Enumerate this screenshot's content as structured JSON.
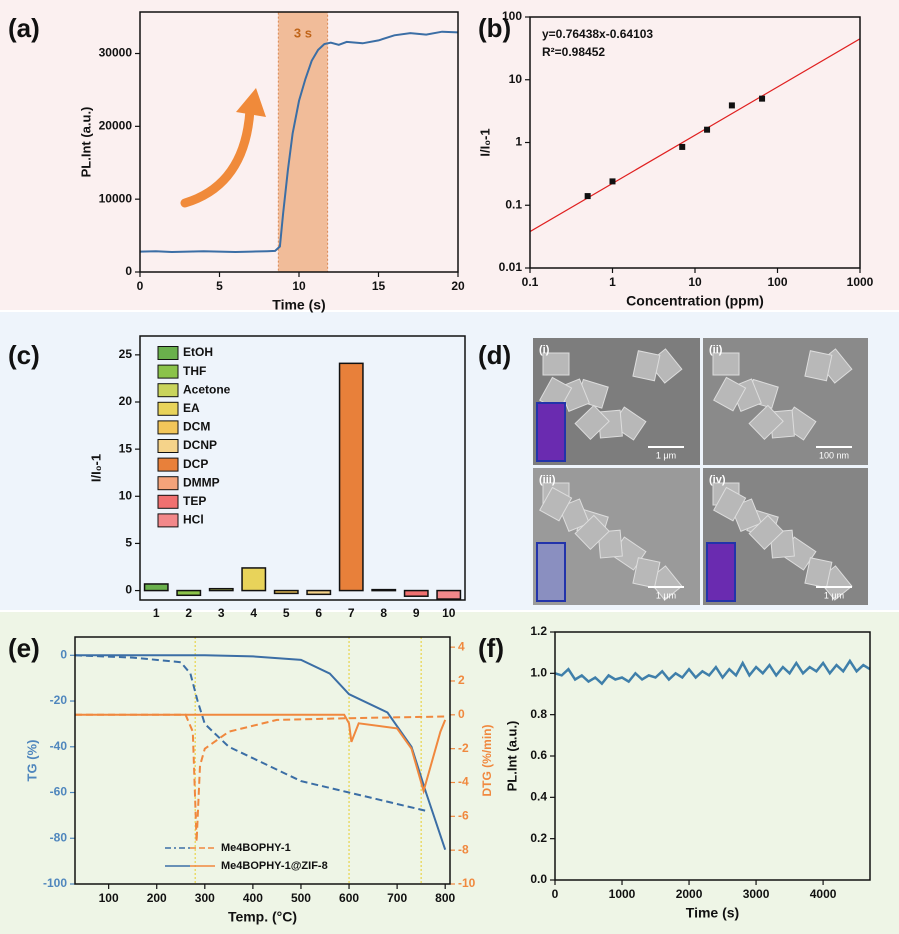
{
  "chart_data": [
    {
      "type": "line",
      "label": "(a)",
      "xlabel": "Time (s)",
      "ylabel": "PL.Int (a.u.)",
      "xlim": [
        0,
        20
      ],
      "xticks": [
        0,
        5,
        10,
        15,
        20
      ],
      "ylim": [
        0,
        35700
      ],
      "yticks": [
        0,
        10000,
        20000,
        30000
      ],
      "x": [
        0,
        1,
        2,
        3,
        4,
        5,
        6,
        7,
        8,
        8.5,
        8.8,
        9,
        9.3,
        9.6,
        10,
        10.4,
        10.8,
        11.2,
        11.6,
        12,
        12.5,
        13,
        14,
        15,
        16,
        17,
        18,
        19,
        20
      ],
      "series": [
        {
          "color": "#3b6ea5",
          "values": [
            2800,
            2850,
            2750,
            2800,
            2850,
            2800,
            2750,
            2800,
            2850,
            2900,
            3500,
            8000,
            14000,
            19000,
            23500,
            26500,
            29000,
            30500,
            31300,
            31500,
            31200,
            31600,
            31400,
            31800,
            32500,
            32800,
            32600,
            33000,
            32900
          ]
        }
      ],
      "highlight": {
        "range": [
          8.7,
          11.8
        ],
        "label": "3 s",
        "color": "#f0b48a"
      }
    },
    {
      "type": "scatter",
      "log": true,
      "label": "(b)",
      "xlabel": "Concentration (ppm)",
      "ylabel": "I/I₀-1",
      "xlim": [
        0.1,
        1000
      ],
      "xticks": [
        0.1,
        1,
        10,
        100,
        1000
      ],
      "ylim": [
        0.01,
        100
      ],
      "yticks": [
        0.01,
        0.1,
        1,
        10,
        100
      ],
      "x": [
        0.5,
        1,
        7,
        14,
        28,
        65
      ],
      "values": [
        0.14,
        0.24,
        0.85,
        1.6,
        3.9,
        5
      ],
      "color": "#111111",
      "fit": {
        "x": [
          0.1,
          1000
        ],
        "values": [
          0.038,
          45
        ],
        "color": "#e02020",
        "equation": "y=0.76438x-0.64103",
        "r2": "R²=0.98452"
      }
    },
    {
      "type": "bar",
      "label": "(c)",
      "ylabel": "I/I₀-1",
      "categories": [
        "1",
        "2",
        "3",
        "4",
        "5",
        "6",
        "7",
        "8",
        "9",
        "10"
      ],
      "values": [
        0.7,
        -0.5,
        0.2,
        2.4,
        -0.3,
        -0.4,
        24.1,
        0.1,
        -0.6,
        -0.9
      ],
      "colors": [
        "#6ab04c",
        "#8bc34a",
        "#c9d45c",
        "#e8d35a",
        "#f2c65a",
        "#f5d38a",
        "#e8803a",
        "#f4a37a",
        "#f07070",
        "#f2888a"
      ],
      "legend": [
        "EtOH",
        "THF",
        "Acetone",
        "EA",
        "DCM",
        "DCNP",
        "DCP",
        "DMMP",
        "TEP",
        "HCl"
      ],
      "ylim": [
        -1,
        27
      ],
      "yticks": [
        0,
        5,
        10,
        15,
        20,
        25
      ]
    },
    {
      "type": "image",
      "label": "(d)",
      "panels": [
        {
          "label": "(i)",
          "scale": "1 μm"
        },
        {
          "label": "(ii)",
          "scale": "100 nm"
        },
        {
          "label": "(iii)",
          "scale": "1 μm"
        },
        {
          "label": "(iv)",
          "scale": "1 μm"
        }
      ]
    },
    {
      "type": "line",
      "label": "(e)",
      "xlabel": "Temp. (°C)",
      "ylabel": "TG (%)",
      "y2label": "DTG (%/min)",
      "ycolor": "#4f86bd",
      "y2color": "#f0883e",
      "xlim": [
        30,
        810
      ],
      "xticks": [
        100,
        200,
        300,
        400,
        500,
        600,
        700,
        800
      ],
      "ylim": [
        -100,
        8
      ],
      "yticks": [
        -100,
        -80,
        -60,
        -40,
        -20,
        0
      ],
      "y2lim": [
        -10,
        4.6
      ],
      "y2ticks": [
        -10,
        -8,
        -6,
        -4,
        -2,
        0,
        2,
        4
      ],
      "vlines": [
        280,
        600,
        750
      ],
      "vline_color": "#e8d44a",
      "series": [
        {
          "color": "#3b6ea5",
          "dash": true,
          "x": [
            30,
            150,
            250,
            270,
            285,
            300,
            350,
            400,
            500,
            600,
            700,
            760
          ],
          "values": [
            0,
            -1,
            -3,
            -8,
            -20,
            -30,
            -40,
            -45,
            -55,
            -60,
            -65,
            -68
          ]
        },
        {
          "color": "#3b6ea5",
          "dash": false,
          "x": [
            30,
            300,
            400,
            500,
            560,
            600,
            680,
            730,
            760,
            800
          ],
          "values": [
            0,
            0,
            -0.5,
            -2,
            -8,
            -17,
            -25,
            -40,
            -60,
            -85
          ]
        },
        {
          "color": "#f0883e",
          "dash": true,
          "axis": "y2",
          "x": [
            30,
            260,
            275,
            283,
            290,
            300,
            350,
            450,
            600,
            800
          ],
          "values": [
            0,
            0,
            -1,
            -7.5,
            -3,
            -2,
            -1,
            -0.3,
            -0.2,
            -0.1
          ]
        },
        {
          "color": "#f0883e",
          "dash": false,
          "axis": "y2",
          "x": [
            30,
            590,
            600,
            605,
            620,
            700,
            730,
            755,
            770,
            790,
            800
          ],
          "values": [
            0,
            0,
            -0.5,
            -1.6,
            -0.5,
            -0.8,
            -2,
            -4.5,
            -3,
            -1,
            -0.3
          ]
        }
      ],
      "legend": [
        {
          "name": "Me4BOPHY-1",
          "dash": true
        },
        {
          "name": "Me4BOPHY-1@ZIF-8",
          "dash": false
        }
      ]
    },
    {
      "type": "line",
      "label": "(f)",
      "xlabel": "Time (s)",
      "ylabel": "PL.Int (a.u.)",
      "xlim": [
        0,
        4700
      ],
      "xticks": [
        0,
        1000,
        2000,
        3000,
        4000
      ],
      "ylim": [
        0,
        1.2
      ],
      "yticks": [
        {
          "value": 0,
          "label": "0.0"
        },
        0.2,
        0.4,
        0.6,
        0.8,
        {
          "value": 1,
          "label": "1.0"
        },
        1.2
      ],
      "x": [
        0,
        100,
        200,
        300,
        400,
        500,
        600,
        700,
        800,
        900,
        1000,
        1100,
        1200,
        1300,
        1400,
        1500,
        1600,
        1700,
        1800,
        1900,
        2000,
        2100,
        2200,
        2300,
        2400,
        2500,
        2600,
        2700,
        2800,
        2900,
        3000,
        3100,
        3200,
        3300,
        3400,
        3500,
        3600,
        3700,
        3800,
        3900,
        4000,
        4100,
        4200,
        4300,
        4400,
        4500,
        4600,
        4700
      ],
      "series": [
        {
          "color": "#3f7faa",
          "values": [
            1.0,
            0.99,
            1.02,
            0.97,
            0.99,
            0.96,
            0.98,
            0.95,
            0.99,
            0.97,
            0.98,
            0.96,
            1.0,
            0.97,
            0.99,
            0.98,
            1.01,
            0.97,
            1.0,
            0.98,
            1.02,
            0.98,
            1.01,
            0.99,
            1.03,
            0.98,
            1.02,
            0.99,
            1.05,
            0.99,
            1.03,
            1.0,
            1.04,
            0.99,
            1.03,
            1.0,
            1.05,
            1.0,
            1.03,
            1.01,
            1.05,
            1.0,
            1.04,
            1.01,
            1.06,
            1.01,
            1.04,
            1.02
          ]
        }
      ]
    }
  ]
}
